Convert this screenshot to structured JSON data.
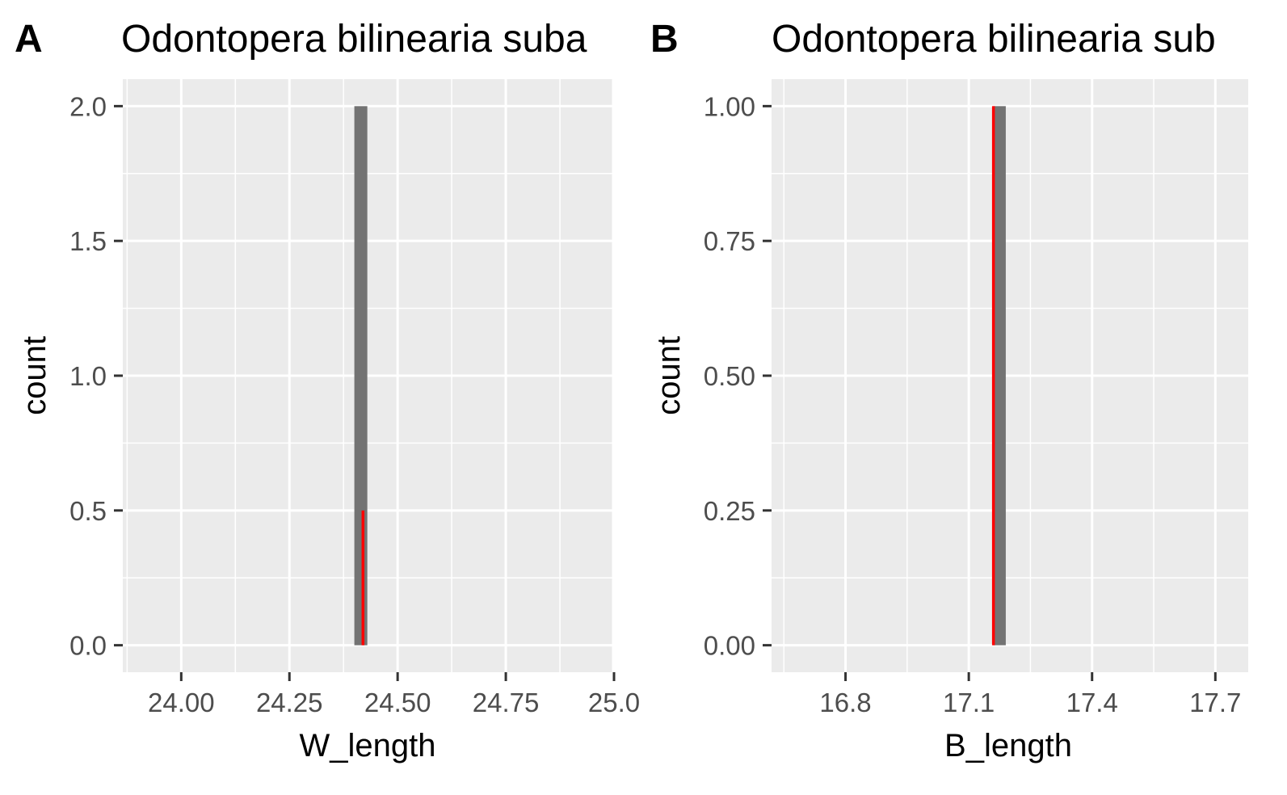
{
  "chart_data": [
    {
      "type": "bar",
      "panel": "A",
      "title": "Odontopera bilinearia suba",
      "xlabel": "W_length",
      "ylabel": "count",
      "x_ticks": [
        "24.00",
        "24.25",
        "24.50",
        "24.75",
        "25.0"
      ],
      "y_ticks": [
        "0.0",
        "0.5",
        "1.0",
        "1.5",
        "2.0"
      ],
      "xlim": [
        23.865,
        25.0
      ],
      "ylim": [
        -0.1,
        2.1
      ],
      "bars": [
        {
          "xmin": 24.4,
          "xmax": 24.43,
          "count": 2
        }
      ],
      "reference_line": {
        "x": 24.42,
        "ymin": 0,
        "ymax": 0.5,
        "color": "#ff0000"
      },
      "grid": true,
      "legend": "none",
      "colors": {
        "panel_bg": "#ebebeb",
        "bar": "#737373",
        "grid": "#ffffff",
        "line": "#ff0000"
      }
    },
    {
      "type": "bar",
      "panel": "B",
      "title": "Odontopera bilinearia sub",
      "xlabel": "B_length",
      "ylabel": "count",
      "x_ticks": [
        "16.8",
        "17.1",
        "17.4",
        "17.7"
      ],
      "y_ticks": [
        "0.00",
        "0.25",
        "0.50",
        "0.75",
        "1.00"
      ],
      "xlim": [
        16.62,
        17.78
      ],
      "ylim": [
        -0.05,
        1.05
      ],
      "bars": [
        {
          "xmin": 17.16,
          "xmax": 17.19,
          "count": 1
        }
      ],
      "reference_line": {
        "x": 17.16,
        "ymin": 0,
        "ymax": 1,
        "color": "#ff0000"
      },
      "grid": true,
      "legend": "none",
      "colors": {
        "panel_bg": "#ebebeb",
        "bar": "#737373",
        "grid": "#ffffff",
        "line": "#ff0000"
      }
    }
  ]
}
